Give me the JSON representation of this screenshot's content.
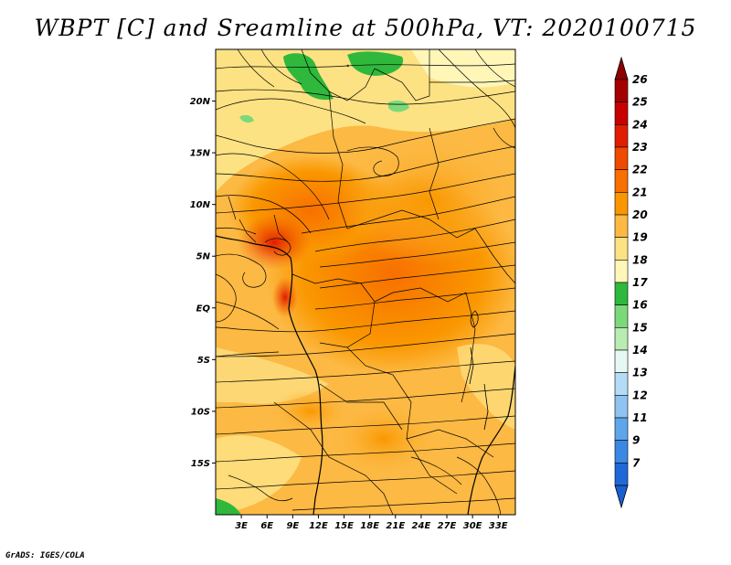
{
  "title": "WBPT [C] and Sreamline at 500hPa, VT: 2020100715",
  "credit": "GrADS: IGES/COLA",
  "map": {
    "variable": "Wet-bulb potential temperature",
    "units": "C",
    "level": "500hPa",
    "valid_time": "2020100715",
    "lon_range": [
      0,
      35
    ],
    "lat_range": [
      -20,
      25
    ],
    "lat_ticks": [
      {
        "value": 20,
        "label": "20N"
      },
      {
        "value": 15,
        "label": "15N"
      },
      {
        "value": 10,
        "label": "10N"
      },
      {
        "value": 5,
        "label": "5N"
      },
      {
        "value": 0,
        "label": "EQ"
      },
      {
        "value": -5,
        "label": "5S"
      },
      {
        "value": -10,
        "label": "10S"
      },
      {
        "value": -15,
        "label": "15S"
      }
    ],
    "lon_ticks": [
      {
        "value": 3,
        "label": "3E"
      },
      {
        "value": 6,
        "label": "6E"
      },
      {
        "value": 9,
        "label": "9E"
      },
      {
        "value": 12,
        "label": "12E"
      },
      {
        "value": 15,
        "label": "15E"
      },
      {
        "value": 18,
        "label": "18E"
      },
      {
        "value": 21,
        "label": "21E"
      },
      {
        "value": 24,
        "label": "24E"
      },
      {
        "value": 27,
        "label": "27E"
      },
      {
        "value": 30,
        "label": "30E"
      },
      {
        "value": 33,
        "label": "33E"
      }
    ]
  },
  "colorbar": {
    "levels": [
      {
        "label": "26",
        "color": "#a50000"
      },
      {
        "label": "25",
        "color": "#c80000"
      },
      {
        "label": "24",
        "color": "#e11d00"
      },
      {
        "label": "23",
        "color": "#f04a00"
      },
      {
        "label": "22",
        "color": "#f77000"
      },
      {
        "label": "21",
        "color": "#fa9700"
      },
      {
        "label": "20",
        "color": "#fcb943"
      },
      {
        "label": "19",
        "color": "#fde283"
      },
      {
        "label": "18",
        "color": "#fff6b8"
      },
      {
        "label": "17",
        "color": "#2fb83c"
      },
      {
        "label": "16",
        "color": "#7cd97a"
      },
      {
        "label": "15",
        "color": "#b8ecb3"
      },
      {
        "label": "14",
        "color": "#e6f8f4"
      },
      {
        "label": "13",
        "color": "#b5dcf6"
      },
      {
        "label": "12",
        "color": "#8fc3f1"
      },
      {
        "label": "11",
        "color": "#5ea6ec"
      },
      {
        "label": "9",
        "color": "#3a88e4"
      },
      {
        "label": "7",
        "color": "#1f68d8"
      }
    ],
    "top_color": "#8e0000",
    "bottom_color": "#1a5fd0"
  }
}
